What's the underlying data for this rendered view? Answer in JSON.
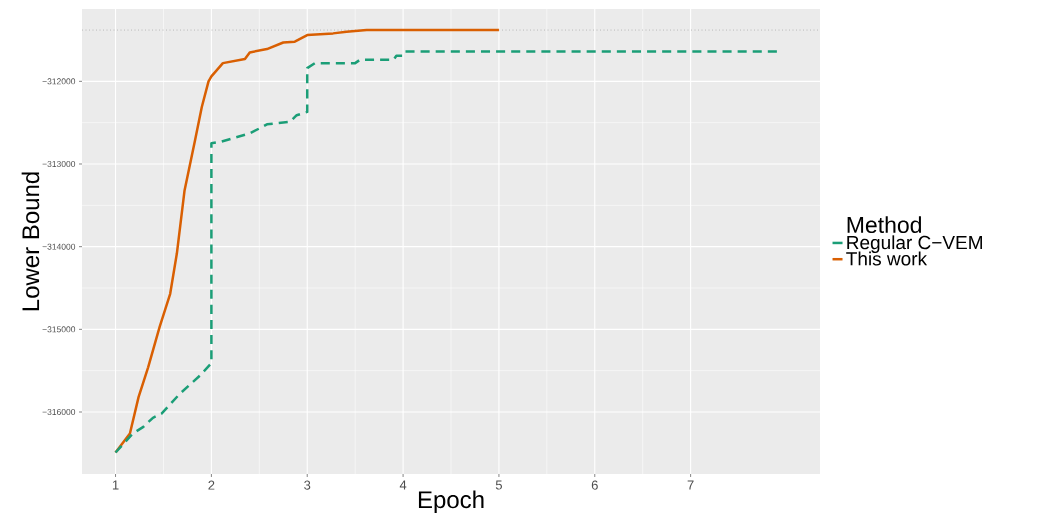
{
  "chart_data": {
    "type": "line",
    "xlabel": "Epoch",
    "ylabel": "Lower Bound",
    "legend_title": "Method",
    "legend": "right",
    "grid": true,
    "xlim": [
      0.65,
      8.35
    ],
    "ylim": [
      -316750,
      -311125
    ],
    "xticks": [
      1,
      2,
      3,
      4,
      5,
      6,
      7
    ],
    "yticks": [
      {
        "value": -316000,
        "label": "−316000"
      },
      {
        "value": -315000,
        "label": "−315000"
      },
      {
        "value": -314000,
        "label": "−314000"
      },
      {
        "value": -313000,
        "label": "−313000"
      },
      {
        "value": -312000,
        "label": "−312000"
      }
    ],
    "ref_lines": [
      {
        "axis": "y",
        "value": -311380,
        "color": "#999999",
        "line_style": "dotted"
      }
    ],
    "series": [
      {
        "name": "Regular C−VEM",
        "color": "#1b9e77",
        "line_style": "dashed",
        "x": [
          1.0,
          1.18,
          1.29,
          1.39,
          1.48,
          1.67,
          1.88,
          2.0,
          2.0,
          2.1,
          2.22,
          2.4,
          2.5,
          2.58,
          2.82,
          2.89,
          3.0,
          3.0,
          3.08,
          3.5,
          3.55,
          3.9,
          3.93,
          4.0,
          4.02,
          7.9
        ],
        "values": [
          -316490,
          -316260,
          -316180,
          -316070,
          -316020,
          -315780,
          -315560,
          -315410,
          -312750,
          -312730,
          -312690,
          -312630,
          -312570,
          -312520,
          -312490,
          -312410,
          -312370,
          -311840,
          -311780,
          -311780,
          -311740,
          -311740,
          -311690,
          -311690,
          -311640,
          -311640
        ]
      },
      {
        "name": "This work",
        "color": "#d95f02",
        "line_style": "solid",
        "x": [
          1.0,
          1.15,
          1.24,
          1.34,
          1.46,
          1.57,
          1.64,
          1.72,
          1.83,
          1.9,
          1.97,
          2.0,
          2.12,
          2.35,
          2.4,
          2.58,
          2.75,
          2.87,
          3.0,
          3.27,
          3.41,
          3.62,
          5.0
        ],
        "values": [
          -316490,
          -316260,
          -315820,
          -315460,
          -314970,
          -314570,
          -314080,
          -313320,
          -312710,
          -312310,
          -312000,
          -311940,
          -311780,
          -311730,
          -311650,
          -311610,
          -311530,
          -311520,
          -311440,
          -311420,
          -311400,
          -311380,
          -311380
        ]
      }
    ]
  }
}
